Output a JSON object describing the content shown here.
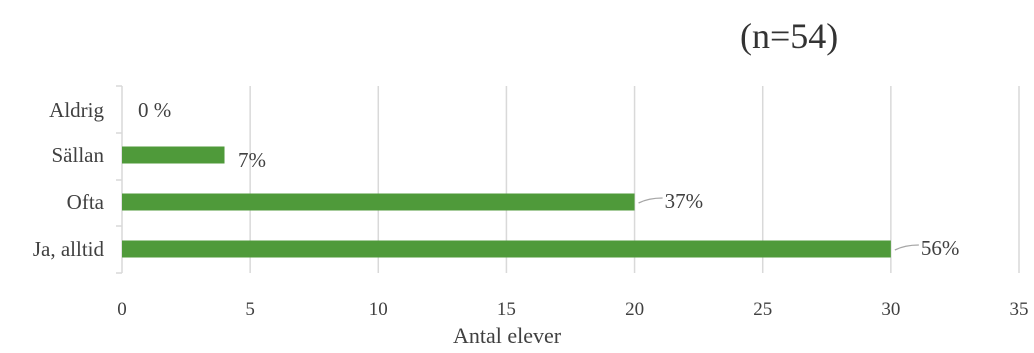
{
  "chart_data": {
    "type": "bar",
    "orientation": "horizontal",
    "title": "",
    "subtitle": "(n=54)",
    "xlabel": "Antal elever",
    "ylabel": "",
    "categories": [
      "Aldrig",
      "Sällan",
      "Ofta",
      "Ja, alltid"
    ],
    "values": [
      0,
      4,
      20,
      30
    ],
    "data_labels": [
      "0 %",
      "7%",
      "37%",
      "56%"
    ],
    "xlim": [
      0,
      35
    ],
    "xticks": [
      0,
      5,
      10,
      15,
      20,
      25,
      30,
      35
    ],
    "xtick_labels": [
      "0",
      "5",
      "10",
      "15",
      "20",
      "25",
      "30",
      "35"
    ],
    "grid": true,
    "bar_color": "#4f9a3a",
    "grid_color": "#d9d9d9"
  }
}
